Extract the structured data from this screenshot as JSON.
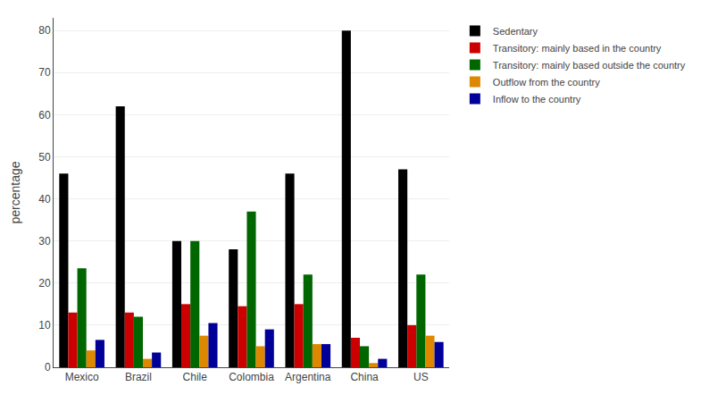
{
  "chart_data": {
    "type": "bar",
    "categories": [
      "Mexico",
      "Brazil",
      "Chile",
      "Colombia",
      "Argentina",
      "China",
      "US"
    ],
    "series": [
      {
        "name": "Sedentary",
        "color": "#000000",
        "values": [
          46,
          62,
          30,
          28,
          46,
          80,
          47
        ]
      },
      {
        "name": "Transitory: mainly based in the country",
        "color": "#cc0000",
        "values": [
          13,
          13,
          15,
          14.5,
          15,
          7,
          10
        ]
      },
      {
        "name": "Transitory: mainly based outside the country",
        "color": "#006600",
        "values": [
          23.5,
          12,
          30,
          37,
          22,
          5,
          22
        ]
      },
      {
        "name": "Outflow from the country",
        "color": "#dd8800",
        "values": [
          4,
          2,
          7.5,
          5,
          5.5,
          1,
          7.5
        ]
      },
      {
        "name": "Inflow to the country",
        "color": "#000099",
        "values": [
          6.5,
          3.5,
          10.5,
          9,
          5.5,
          2,
          6
        ]
      }
    ],
    "ylabel": "percentage",
    "ylim": [
      0,
      83
    ],
    "yticks": [
      0,
      10,
      20,
      30,
      40,
      50,
      60,
      70,
      80
    ],
    "grid": true,
    "legend": "right"
  }
}
